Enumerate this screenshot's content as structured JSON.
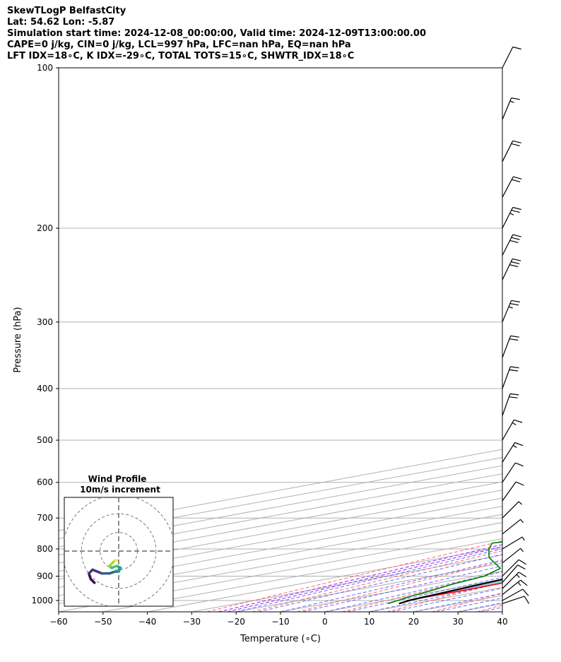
{
  "header": {
    "lines": [
      "SkewTLogP BelfastCity",
      "Lat: 54.62   Lon: -5.87",
      "Simulation start time: 2024-12-08_00:00:00, Valid time: 2024-12-09T13:00:00.00",
      "CAPE=0 j/kg, CIN=0 j/kg, LCL=997 hPa, LFC=nan hPa, EQ=nan hPa",
      "LFT IDX=18∘C, K IDX=-29∘C, TOTAL TOTS=15∘C, SHWTR_IDX=18∘C"
    ]
  },
  "chart_data": {
    "type": "line",
    "title": "SkewTLogP BelfastCity",
    "xlabel": "Temperature (∘C)",
    "ylabel": "Pressure (hPa)",
    "xlim": [
      -60,
      40
    ],
    "ylim": [
      1050,
      100
    ],
    "y_scale": "log",
    "x_ticks": [
      -60,
      -50,
      -40,
      -30,
      -20,
      -10,
      0,
      10,
      20,
      30,
      40
    ],
    "x_tick_labels": [
      "−60",
      "−50",
      "−40",
      "−30",
      "−20",
      "−10",
      "0",
      "10",
      "20",
      "30",
      "40"
    ],
    "y_ticks": [
      1000,
      900,
      800,
      700,
      600,
      500,
      400,
      300,
      200,
      100
    ],
    "grid": true,
    "series": [
      {
        "role": "temperature",
        "color": "#ff0000",
        "points": [
          [
            1000,
            4.5
          ],
          [
            960,
            4.8
          ],
          [
            925,
            4.6
          ],
          [
            900,
            4.3
          ],
          [
            850,
            5.0
          ],
          [
            800,
            4.5
          ],
          [
            750,
            3.5
          ],
          [
            700,
            1.5
          ],
          [
            650,
            -1.0
          ],
          [
            600,
            -3.5
          ],
          [
            550,
            -6.0
          ],
          [
            500,
            -9.0
          ],
          [
            450,
            -12.5
          ],
          [
            400,
            -17.0
          ],
          [
            350,
            -22.5
          ],
          [
            300,
            -29.0
          ],
          [
            270,
            -33.0
          ],
          [
            240,
            -37.0
          ],
          [
            225,
            -40.5
          ],
          [
            210,
            -44.5
          ],
          [
            200,
            -46.5
          ],
          [
            180,
            -52.5
          ],
          [
            160,
            -56.0
          ],
          [
            140,
            -59.0
          ],
          [
            120,
            -63.0
          ],
          [
            100,
            -72.0
          ]
        ]
      },
      {
        "role": "dewpoint",
        "color": "#008000",
        "points": [
          [
            1013,
            4.0
          ],
          [
            1000,
            2.5
          ],
          [
            980,
            0.0
          ],
          [
            960,
            -2.0
          ],
          [
            930,
            -5.5
          ],
          [
            900,
            -8.0
          ],
          [
            870,
            -14.0
          ],
          [
            830,
            -30.0
          ],
          [
            800,
            -40.5
          ],
          [
            780,
            -47.0
          ],
          [
            700,
            -26.0
          ],
          [
            650,
            -13.0
          ],
          [
            600,
            -13.0
          ],
          [
            550,
            -15.5
          ],
          [
            500,
            -20.0
          ],
          [
            450,
            -24.5
          ],
          [
            400,
            -23.0
          ],
          [
            360,
            -26.5
          ],
          [
            330,
            -33.0
          ],
          [
            300,
            -39.5
          ],
          [
            260,
            -42.5
          ],
          [
            230,
            -48.5
          ],
          [
            205,
            -57.5
          ],
          [
            190,
            -58.0
          ],
          [
            170,
            -61.5
          ],
          [
            140,
            -67.0
          ],
          [
            120,
            -71.0
          ],
          [
            100,
            -82.0
          ]
        ]
      },
      {
        "role": "parcel",
        "color": "#000000",
        "points": [
          [
            1013,
            6.5
          ],
          [
            997,
            4.8
          ],
          [
            950,
            2.2
          ],
          [
            900,
            -0.8
          ],
          [
            850,
            -4.1
          ],
          [
            800,
            -7.8
          ],
          [
            750,
            -12.0
          ],
          [
            700,
            -16.8
          ],
          [
            650,
            -22.2
          ],
          [
            600,
            -28.2
          ],
          [
            550,
            -34.8
          ],
          [
            500,
            -41.6
          ],
          [
            450,
            -48.6
          ],
          [
            400,
            -55.8
          ],
          [
            350,
            -63.2
          ],
          [
            300,
            -71.0
          ],
          [
            250,
            -79.5
          ],
          [
            200,
            -89.0
          ],
          [
            150,
            -99.0
          ],
          [
            100,
            -110.0
          ]
        ]
      }
    ],
    "wind_barbs": [
      {
        "p": 1013,
        "u": -9,
        "v": -3
      },
      {
        "p": 1000,
        "u": -9,
        "v": -5
      },
      {
        "p": 975,
        "u": -10,
        "v": -8
      },
      {
        "p": 950,
        "u": -9,
        "v": -9
      },
      {
        "p": 925,
        "u": -7,
        "v": -8
      },
      {
        "p": 900,
        "u": -6,
        "v": -6
      },
      {
        "p": 850,
        "u": -5,
        "v": -4
      },
      {
        "p": 800,
        "u": -5,
        "v": -3
      },
      {
        "p": 750,
        "u": -5,
        "v": -4
      },
      {
        "p": 700,
        "u": -4,
        "v": -4
      },
      {
        "p": 650,
        "u": -5,
        "v": -7
      },
      {
        "p": 600,
        "u": -6,
        "v": -9
      },
      {
        "p": 550,
        "u": -7,
        "v": -11
      },
      {
        "p": 500,
        "u": -8,
        "v": -14
      },
      {
        "p": 450,
        "u": -6,
        "v": -17
      },
      {
        "p": 400,
        "u": -7,
        "v": -19
      },
      {
        "p": 350,
        "u": -8,
        "v": -21
      },
      {
        "p": 300,
        "u": -10,
        "v": -24
      },
      {
        "p": 250,
        "u": -12,
        "v": -25
      },
      {
        "p": 225,
        "u": -13,
        "v": -26
      },
      {
        "p": 200,
        "u": -12,
        "v": -24
      },
      {
        "p": 175,
        "u": -10,
        "v": -19
      },
      {
        "p": 150,
        "u": -8,
        "v": -16
      },
      {
        "p": 125,
        "u": -5,
        "v": -12
      },
      {
        "p": 100,
        "u": -4,
        "v": -8
      }
    ],
    "hodograph": {
      "title": "Wind Profile",
      "subtitle": "10m/s increment",
      "rings": [
        10,
        20,
        30
      ],
      "trace": [
        [
          -13,
          -17
        ],
        [
          -15,
          -15
        ],
        [
          -16,
          -12
        ],
        [
          -14,
          -10
        ],
        [
          -9,
          -12
        ],
        [
          -5,
          -12
        ],
        [
          -2,
          -11
        ],
        [
          0,
          -11
        ],
        [
          1,
          -9
        ],
        [
          -1,
          -8
        ],
        [
          -4,
          -9
        ],
        [
          -5,
          -8
        ],
        [
          -3,
          -6
        ],
        [
          -2,
          -5
        ],
        [
          -1,
          -5
        ]
      ]
    }
  }
}
